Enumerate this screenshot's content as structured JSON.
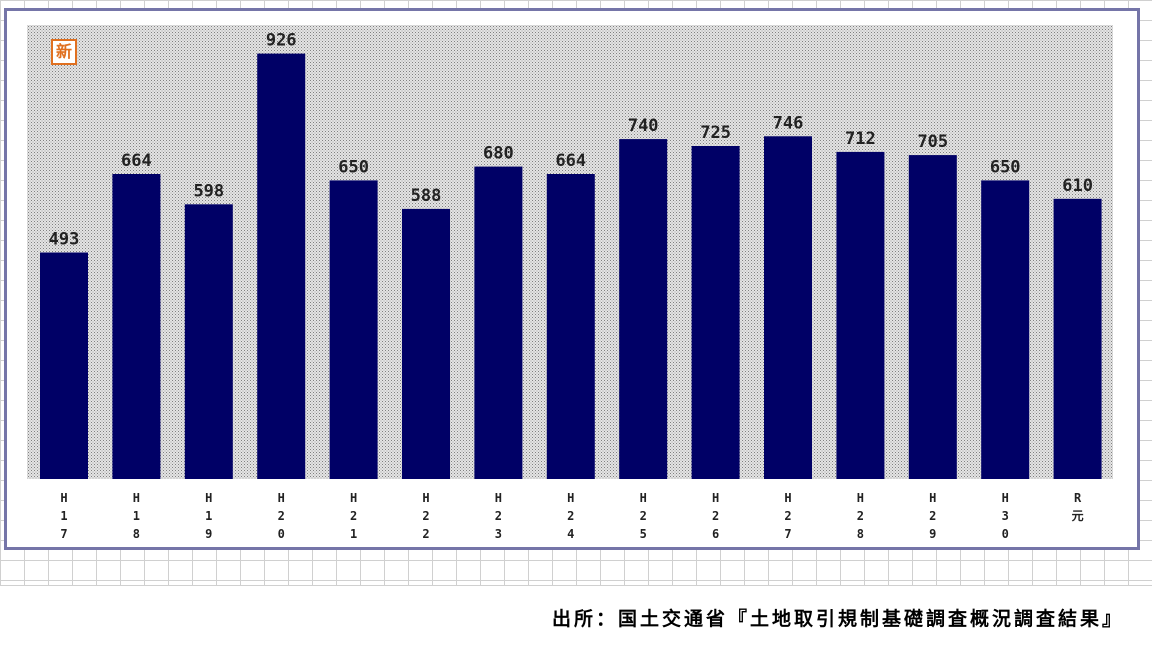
{
  "badge": {
    "label": "新"
  },
  "source": {
    "text": "出所：国土交通省『土地取引規制基礎調査概況調査結果』"
  },
  "chart_data": {
    "type": "bar",
    "categories": [
      "H17",
      "H18",
      "H19",
      "H20",
      "H21",
      "H22",
      "H23",
      "H24",
      "H25",
      "H26",
      "H27",
      "H28",
      "H29",
      "H30",
      "R元"
    ],
    "tick_labels": [
      [
        "H",
        "1",
        "7"
      ],
      [
        "H",
        "1",
        "8"
      ],
      [
        "H",
        "1",
        "9"
      ],
      [
        "H",
        "2",
        "0"
      ],
      [
        "H",
        "2",
        "1"
      ],
      [
        "H",
        "2",
        "2"
      ],
      [
        "H",
        "2",
        "3"
      ],
      [
        "H",
        "2",
        "4"
      ],
      [
        "H",
        "2",
        "5"
      ],
      [
        "H",
        "2",
        "6"
      ],
      [
        "H",
        "2",
        "7"
      ],
      [
        "H",
        "2",
        "8"
      ],
      [
        "H",
        "2",
        "9"
      ],
      [
        "H",
        "3",
        "0"
      ],
      [
        "R",
        "元"
      ]
    ],
    "values": [
      493,
      664,
      598,
      926,
      650,
      588,
      680,
      664,
      740,
      725,
      746,
      712,
      705,
      650,
      610
    ],
    "ylim": [
      0,
      960
    ],
    "bar_color": "#000066",
    "plot_background": "dotted grey",
    "grid": false,
    "legend": "none"
  }
}
